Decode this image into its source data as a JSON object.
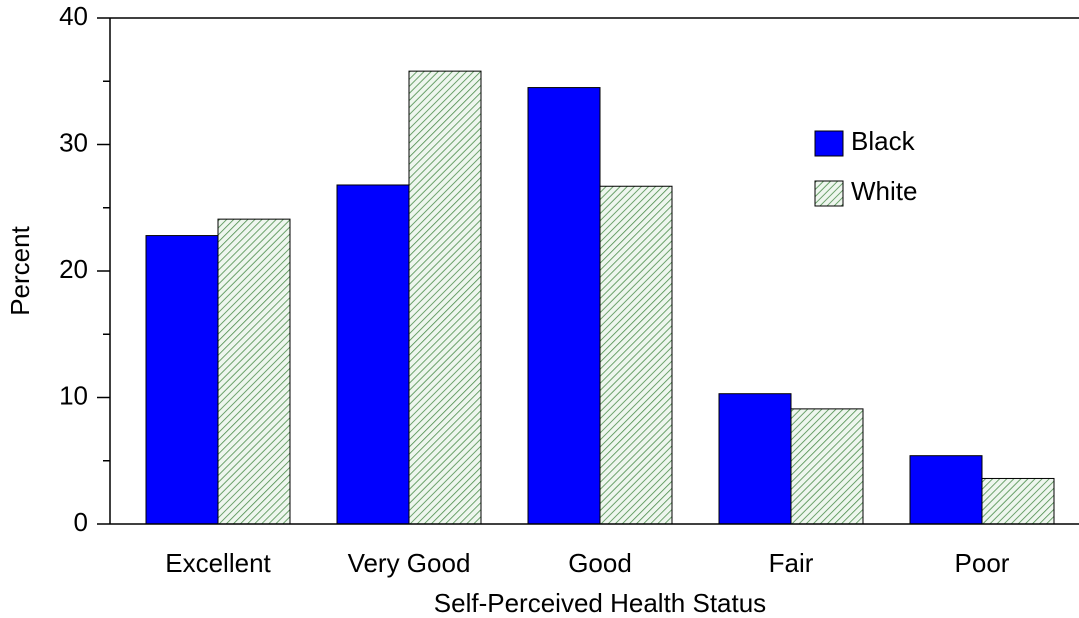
{
  "chart_data": {
    "type": "bar",
    "x_label": "Self-Perceived Health Status",
    "y_label": "Percent",
    "categories": [
      "Excellent",
      "Very Good",
      "Good",
      "Fair",
      "Poor"
    ],
    "series": [
      {
        "name": "Black",
        "color": "#0000ff",
        "values": [
          22.8,
          26.8,
          34.5,
          10.3,
          5.4
        ]
      },
      {
        "name": "White",
        "color": "#4c8c4c",
        "values": [
          24.1,
          35.8,
          26.7,
          9.1,
          3.6
        ]
      }
    ],
    "ylim": [
      0,
      40
    ],
    "yticks": [
      0,
      10,
      20,
      30,
      40
    ],
    "minor_yticks": [
      5,
      15,
      25,
      35
    ]
  }
}
